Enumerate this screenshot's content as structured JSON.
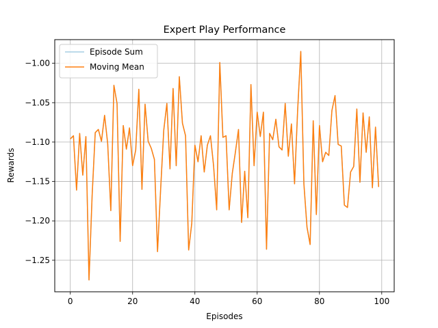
{
  "chart_data": {
    "type": "line",
    "title": "Expert Play Performance",
    "xlabel": "Episodes",
    "ylabel": "Rewards",
    "xlim": [
      -5,
      104
    ],
    "ylim": [
      -1.29,
      -0.97
    ],
    "xticks": [
      0,
      20,
      40,
      60,
      80,
      100
    ],
    "xtick_labels": [
      "0",
      "20",
      "40",
      "60",
      "80",
      "100"
    ],
    "yticks": [
      -1.25,
      -1.2,
      -1.15,
      -1.1,
      -1.05,
      -1.0
    ],
    "ytick_labels": [
      "−1.25",
      "−1.20",
      "−1.15",
      "−1.10",
      "−1.05",
      "−1.00"
    ],
    "grid": true,
    "legend_position": "upper-left",
    "x": [
      0,
      1,
      2,
      3,
      4,
      5,
      6,
      7,
      8,
      9,
      10,
      11,
      12,
      13,
      14,
      15,
      16,
      17,
      18,
      19,
      20,
      21,
      22,
      23,
      24,
      25,
      26,
      27,
      28,
      29,
      30,
      31,
      32,
      33,
      34,
      35,
      36,
      37,
      38,
      39,
      40,
      41,
      42,
      43,
      44,
      45,
      46,
      47,
      48,
      49,
      50,
      51,
      52,
      53,
      54,
      55,
      56,
      57,
      58,
      59,
      60,
      61,
      62,
      63,
      64,
      65,
      66,
      67,
      68,
      69,
      70,
      71,
      72,
      73,
      74,
      75,
      76,
      77,
      78,
      79,
      80,
      81,
      82,
      83,
      84,
      85,
      86,
      87,
      88,
      89,
      90,
      91,
      92,
      93,
      94,
      95,
      96,
      97,
      98,
      99
    ],
    "series": [
      {
        "name": "Episode Sum",
        "color": "#a6cee3",
        "values": [
          -1.096,
          -1.092,
          -1.161,
          -1.089,
          -1.142,
          -1.093,
          -1.275,
          -1.168,
          -1.088,
          -1.084,
          -1.099,
          -1.066,
          -1.102,
          -1.187,
          -1.028,
          -1.051,
          -1.226,
          -1.079,
          -1.109,
          -1.082,
          -1.13,
          -1.11,
          -1.033,
          -1.16,
          -1.052,
          -1.099,
          -1.108,
          -1.122,
          -1.239,
          -1.16,
          -1.085,
          -1.051,
          -1.134,
          -1.032,
          -1.13,
          -1.017,
          -1.076,
          -1.092,
          -1.237,
          -1.203,
          -1.104,
          -1.125,
          -1.092,
          -1.138,
          -1.104,
          -1.092,
          -1.13,
          -1.186,
          -0.999,
          -1.094,
          -1.092,
          -1.186,
          -1.14,
          -1.113,
          -1.084,
          -1.202,
          -1.137,
          -1.196,
          -1.027,
          -1.13,
          -1.062,
          -1.093,
          -1.062,
          -1.236,
          -1.089,
          -1.097,
          -1.071,
          -1.106,
          -1.11,
          -1.051,
          -1.118,
          -1.077,
          -1.153,
          -1.059,
          -0.985,
          -1.153,
          -1.208,
          -1.23,
          -1.073,
          -1.192,
          -1.079,
          -1.125,
          -1.113,
          -1.117,
          -1.06,
          -1.041,
          -1.103,
          -1.105,
          -1.18,
          -1.183,
          -1.138,
          -1.131,
          -1.058,
          -1.151,
          -1.063,
          -1.113,
          -1.068,
          -1.158,
          -1.081,
          -1.157
        ]
      },
      {
        "name": "Moving Mean",
        "color": "#ff7f0e",
        "values": [
          -1.096,
          -1.092,
          -1.161,
          -1.089,
          -1.142,
          -1.093,
          -1.275,
          -1.168,
          -1.088,
          -1.084,
          -1.099,
          -1.066,
          -1.102,
          -1.187,
          -1.028,
          -1.051,
          -1.226,
          -1.079,
          -1.109,
          -1.082,
          -1.13,
          -1.11,
          -1.033,
          -1.16,
          -1.052,
          -1.099,
          -1.108,
          -1.122,
          -1.239,
          -1.16,
          -1.085,
          -1.051,
          -1.134,
          -1.032,
          -1.13,
          -1.017,
          -1.076,
          -1.092,
          -1.237,
          -1.203,
          -1.104,
          -1.125,
          -1.092,
          -1.138,
          -1.104,
          -1.092,
          -1.13,
          -1.186,
          -0.999,
          -1.094,
          -1.092,
          -1.186,
          -1.14,
          -1.113,
          -1.084,
          -1.202,
          -1.137,
          -1.196,
          -1.027,
          -1.13,
          -1.062,
          -1.093,
          -1.062,
          -1.236,
          -1.089,
          -1.097,
          -1.071,
          -1.106,
          -1.11,
          -1.051,
          -1.118,
          -1.077,
          -1.153,
          -1.059,
          -0.985,
          -1.153,
          -1.208,
          -1.23,
          -1.073,
          -1.192,
          -1.079,
          -1.125,
          -1.113,
          -1.117,
          -1.06,
          -1.041,
          -1.103,
          -1.105,
          -1.18,
          -1.183,
          -1.138,
          -1.131,
          -1.058,
          -1.151,
          -1.063,
          -1.113,
          -1.068,
          -1.158,
          -1.081,
          -1.157
        ]
      }
    ]
  }
}
